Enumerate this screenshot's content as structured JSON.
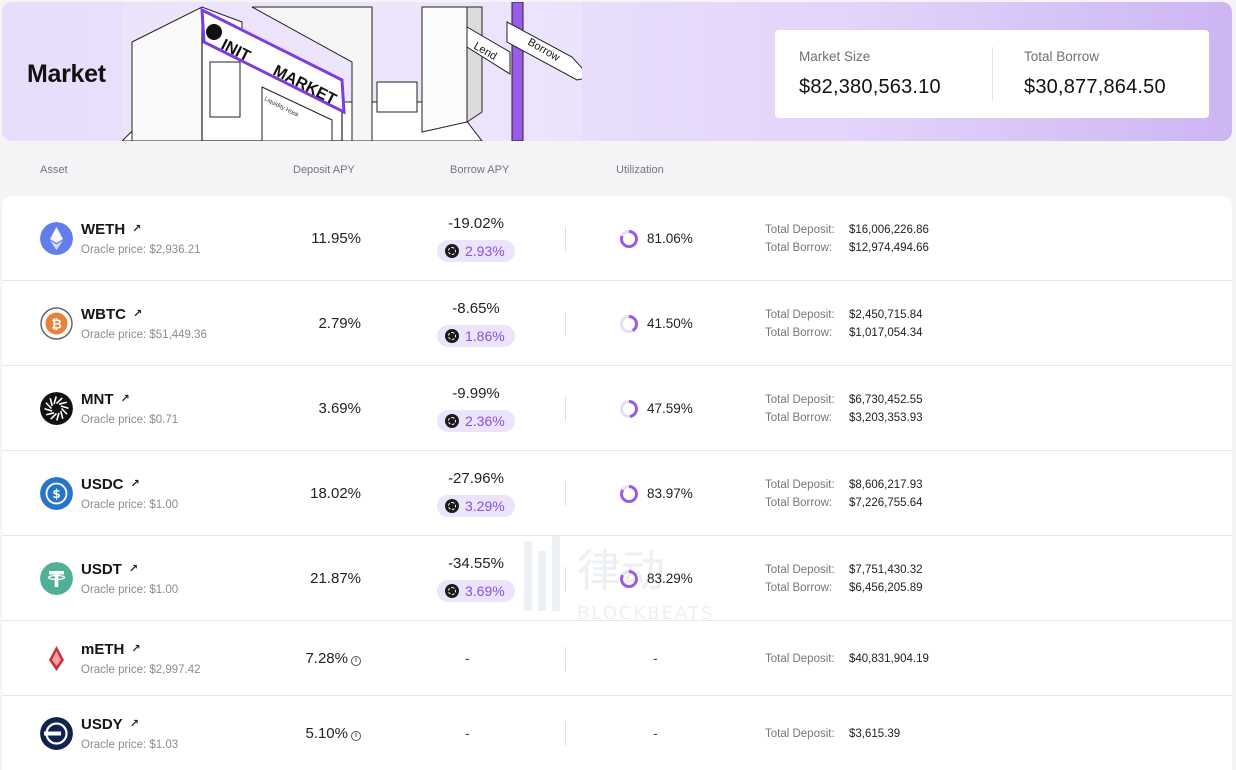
{
  "header": {
    "title": "Market",
    "illustration_signs": [
      "INIT",
      "MARKET",
      "Lend",
      "Borrow",
      "Liquidity Hook"
    ]
  },
  "stats": {
    "market_size_label": "Market Size",
    "market_size_value": "$82,380,563.10",
    "total_borrow_label": "Total Borrow",
    "total_borrow_value": "$30,877,864.50"
  },
  "columns": {
    "asset": "Asset",
    "deposit_apy": "Deposit APY",
    "borrow_apy": "Borrow APY",
    "utilization": "Utilization"
  },
  "labels": {
    "total_deposit": "Total Deposit:",
    "total_borrow": "Total Borrow:",
    "dash": "-"
  },
  "assets": [
    {
      "symbol": "WETH",
      "icon": "eth-icon",
      "oracle": "Oracle price: $2,936.21",
      "deposit_apy": "11.95%",
      "borrow_apy": "-19.02%",
      "reward_apy": "2.93%",
      "utilization": "81.06%",
      "utilization_pct": 81.06,
      "total_deposit": "$16,006,226.86",
      "total_borrow": "$12,974,494.66",
      "color": "#627eea"
    },
    {
      "symbol": "WBTC",
      "icon": "btc-icon",
      "oracle": "Oracle price: $51,449.36",
      "deposit_apy": "2.79%",
      "borrow_apy": "-8.65%",
      "reward_apy": "1.86%",
      "utilization": "41.50%",
      "utilization_pct": 41.5,
      "total_deposit": "$2,450,715.84",
      "total_borrow": "$1,017,054.34",
      "color": "#e8833a"
    },
    {
      "symbol": "MNT",
      "icon": "mnt-icon",
      "oracle": "Oracle price: $0.71",
      "deposit_apy": "3.69%",
      "borrow_apy": "-9.99%",
      "reward_apy": "2.36%",
      "utilization": "47.59%",
      "utilization_pct": 47.59,
      "total_deposit": "$6,730,452.55",
      "total_borrow": "$3,203,353.93",
      "color": "#111111"
    },
    {
      "symbol": "USDC",
      "icon": "usdc-icon",
      "oracle": "Oracle price: $1.00",
      "deposit_apy": "18.02%",
      "borrow_apy": "-27.96%",
      "reward_apy": "3.29%",
      "utilization": "83.97%",
      "utilization_pct": 83.97,
      "total_deposit": "$8,606,217.93",
      "total_borrow": "$7,226,755.64",
      "color": "#2775ca"
    },
    {
      "symbol": "USDT",
      "icon": "usdt-icon",
      "oracle": "Oracle price: $1.00",
      "deposit_apy": "21.87%",
      "borrow_apy": "-34.55%",
      "reward_apy": "3.69%",
      "utilization": "83.29%",
      "utilization_pct": 83.29,
      "total_deposit": "$7,751,430.32",
      "total_borrow": "$6,456,205.89",
      "color": "#50af95"
    },
    {
      "symbol": "mETH",
      "icon": "meth-icon",
      "oracle": "Oracle price: $2,997.42",
      "deposit_apy": "7.28%",
      "total_deposit": "$40,831,904.19",
      "color": "#c8323a"
    },
    {
      "symbol": "USDY",
      "icon": "usdy-icon",
      "oracle": "Oracle price: $1.03",
      "deposit_apy": "5.10%",
      "total_deposit": "$3,615.39",
      "color": "#10234e"
    }
  ],
  "watermark": {
    "cn": "律动",
    "en": "BLOCKBEATS"
  },
  "theme": {
    "accent": "#8a4fe0",
    "pill_bg": "#ece4fb"
  }
}
